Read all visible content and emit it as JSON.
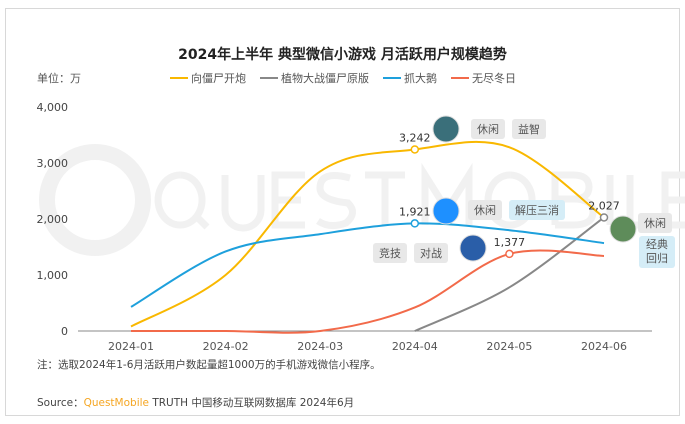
{
  "title": "2024年上半年 典型微信小游戏 月活跃用户规模趋势",
  "unit": "单位：万",
  "note": "注：选取2024年1-6月活跃用户数起量超1000万的手机游戏微信小程序。",
  "source": {
    "label": "Source：",
    "brand": "QuestMobile",
    "rest": " TRUTH 中国移动互联网数据库 2024年6月"
  },
  "watermark": "QUESTMOBILE",
  "tags": {
    "xiangjiangshi": [
      "休闲",
      "益智"
    ],
    "zhuadae": [
      "休闲",
      "解压三消"
    ],
    "wujindongri": [
      "竞技",
      "对战"
    ],
    "zhiwu": [
      "休闲",
      "经典回归"
    ]
  },
  "chart_data": {
    "type": "line",
    "title": "2024年上半年 典型微信小游戏 月活跃用户规模趋势",
    "ylabel": "单位：万",
    "categories": [
      "2024-01",
      "2024-02",
      "2024-03",
      "2024-04",
      "2024-05",
      "2024-06"
    ],
    "ylim": [
      0,
      4000
    ],
    "yticks": [
      "0",
      "1,000",
      "2,000",
      "3,000",
      "4,000"
    ],
    "legend_position": "top",
    "series": [
      {
        "name": "向僵尸开炮",
        "color": "#f9b800",
        "values": [
          80,
          1000,
          2850,
          3242,
          3280,
          2027
        ],
        "labels": {
          "3": "3,242"
        }
      },
      {
        "name": "植物大战僵尸原版",
        "color": "#888888",
        "values": [
          null,
          null,
          null,
          0,
          780,
          2027
        ],
        "labels": {
          "5": "2,027"
        }
      },
      {
        "name": "抓大鹅",
        "color": "#1ea0dc",
        "values": [
          430,
          1420,
          1730,
          1921,
          1800,
          1570
        ],
        "labels": {
          "3": "1,921"
        }
      },
      {
        "name": "无尽冬日",
        "color": "#f26a4a",
        "values": [
          0,
          0,
          0,
          420,
          1377,
          1340
        ],
        "labels": {
          "4": "1,377"
        }
      }
    ]
  }
}
